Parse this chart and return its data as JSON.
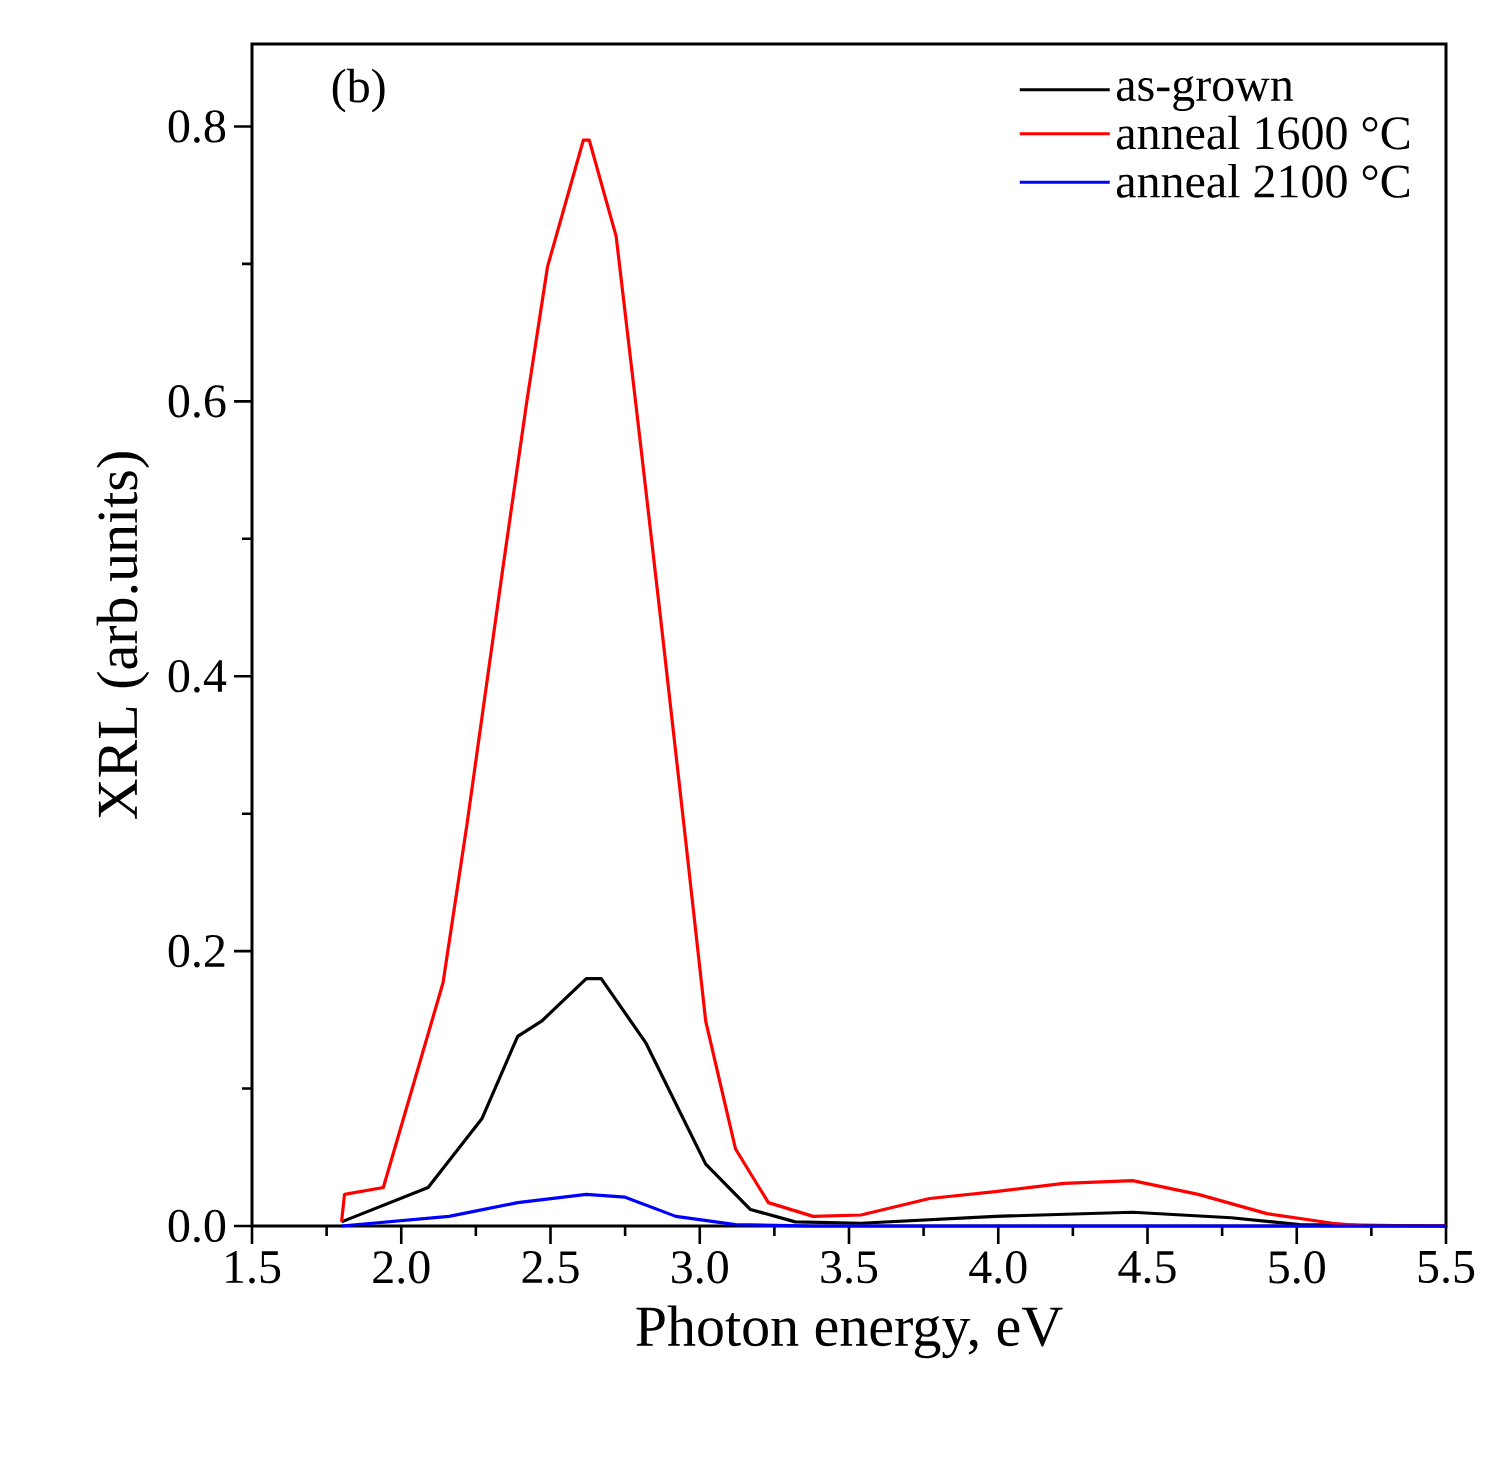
{
  "chart_data": {
    "type": "line",
    "xlabel": "Photon energy, eV",
    "ylabel": "XRL (arb.units)",
    "annotations": [
      "(b)"
    ],
    "xlim": [
      1.5,
      5.5
    ],
    "ylim": [
      0,
      0.86
    ],
    "xticks": [
      1.5,
      {
        "value": 2,
        "label": "2.0"
      },
      2.5,
      {
        "value": 3,
        "label": "3.0"
      },
      3.5,
      {
        "value": 4,
        "label": "4.0"
      },
      4.5,
      {
        "value": 5,
        "label": "5.0"
      },
      5.5
    ],
    "yticks": [
      {
        "value": 0,
        "label": "0.0"
      },
      0.2,
      0.4,
      0.6,
      0.8
    ],
    "legend": "top right",
    "grid": false,
    "marker": "none",
    "line_style": "solid",
    "series": [
      {
        "name": "as-grown",
        "color": "#000000",
        "x": [
          1.8,
          2.09,
          2.27,
          2.39,
          2.47,
          2.62,
          2.67,
          2.82,
          2.92,
          3.02,
          3.17,
          3.32,
          3.54,
          3.99,
          4.45,
          4.78,
          5.01,
          5.5
        ],
        "values": [
          0.003,
          0.028,
          0.078,
          0.138,
          0.149,
          0.18,
          0.18,
          0.133,
          0.089,
          0.045,
          0.012,
          0.003,
          0.002,
          0.007,
          0.01,
          0.006,
          0.001,
          0
        ]
      },
      {
        "name": "anneal 1600 °C",
        "color": "#ff0000",
        "x": [
          1.8,
          1.81,
          1.94,
          2.14,
          2.22,
          2.34,
          2.42,
          2.49,
          2.61,
          2.63,
          2.72,
          2.8,
          2.87,
          2.95,
          3.02,
          3.12,
          3.23,
          3.38,
          3.54,
          3.77,
          3.99,
          4.22,
          4.45,
          4.67,
          4.9,
          5.12,
          5.23,
          5.5
        ],
        "values": [
          0.003,
          0.023,
          0.028,
          0.177,
          0.292,
          0.478,
          0.599,
          0.698,
          0.79,
          0.79,
          0.72,
          0.572,
          0.44,
          0.286,
          0.149,
          0.056,
          0.017,
          0.007,
          0.008,
          0.02,
          0.025,
          0.031,
          0.033,
          0.023,
          0.009,
          0.002,
          0,
          0
        ]
      },
      {
        "name": "anneal 2100 °C",
        "color": "#0000ff",
        "x": [
          1.8,
          2.16,
          2.39,
          2.62,
          2.75,
          2.92,
          3.12,
          3.38,
          5.5
        ],
        "values": [
          0,
          0.007,
          0.017,
          0.023,
          0.021,
          0.007,
          0.001,
          0,
          0
        ]
      }
    ]
  }
}
